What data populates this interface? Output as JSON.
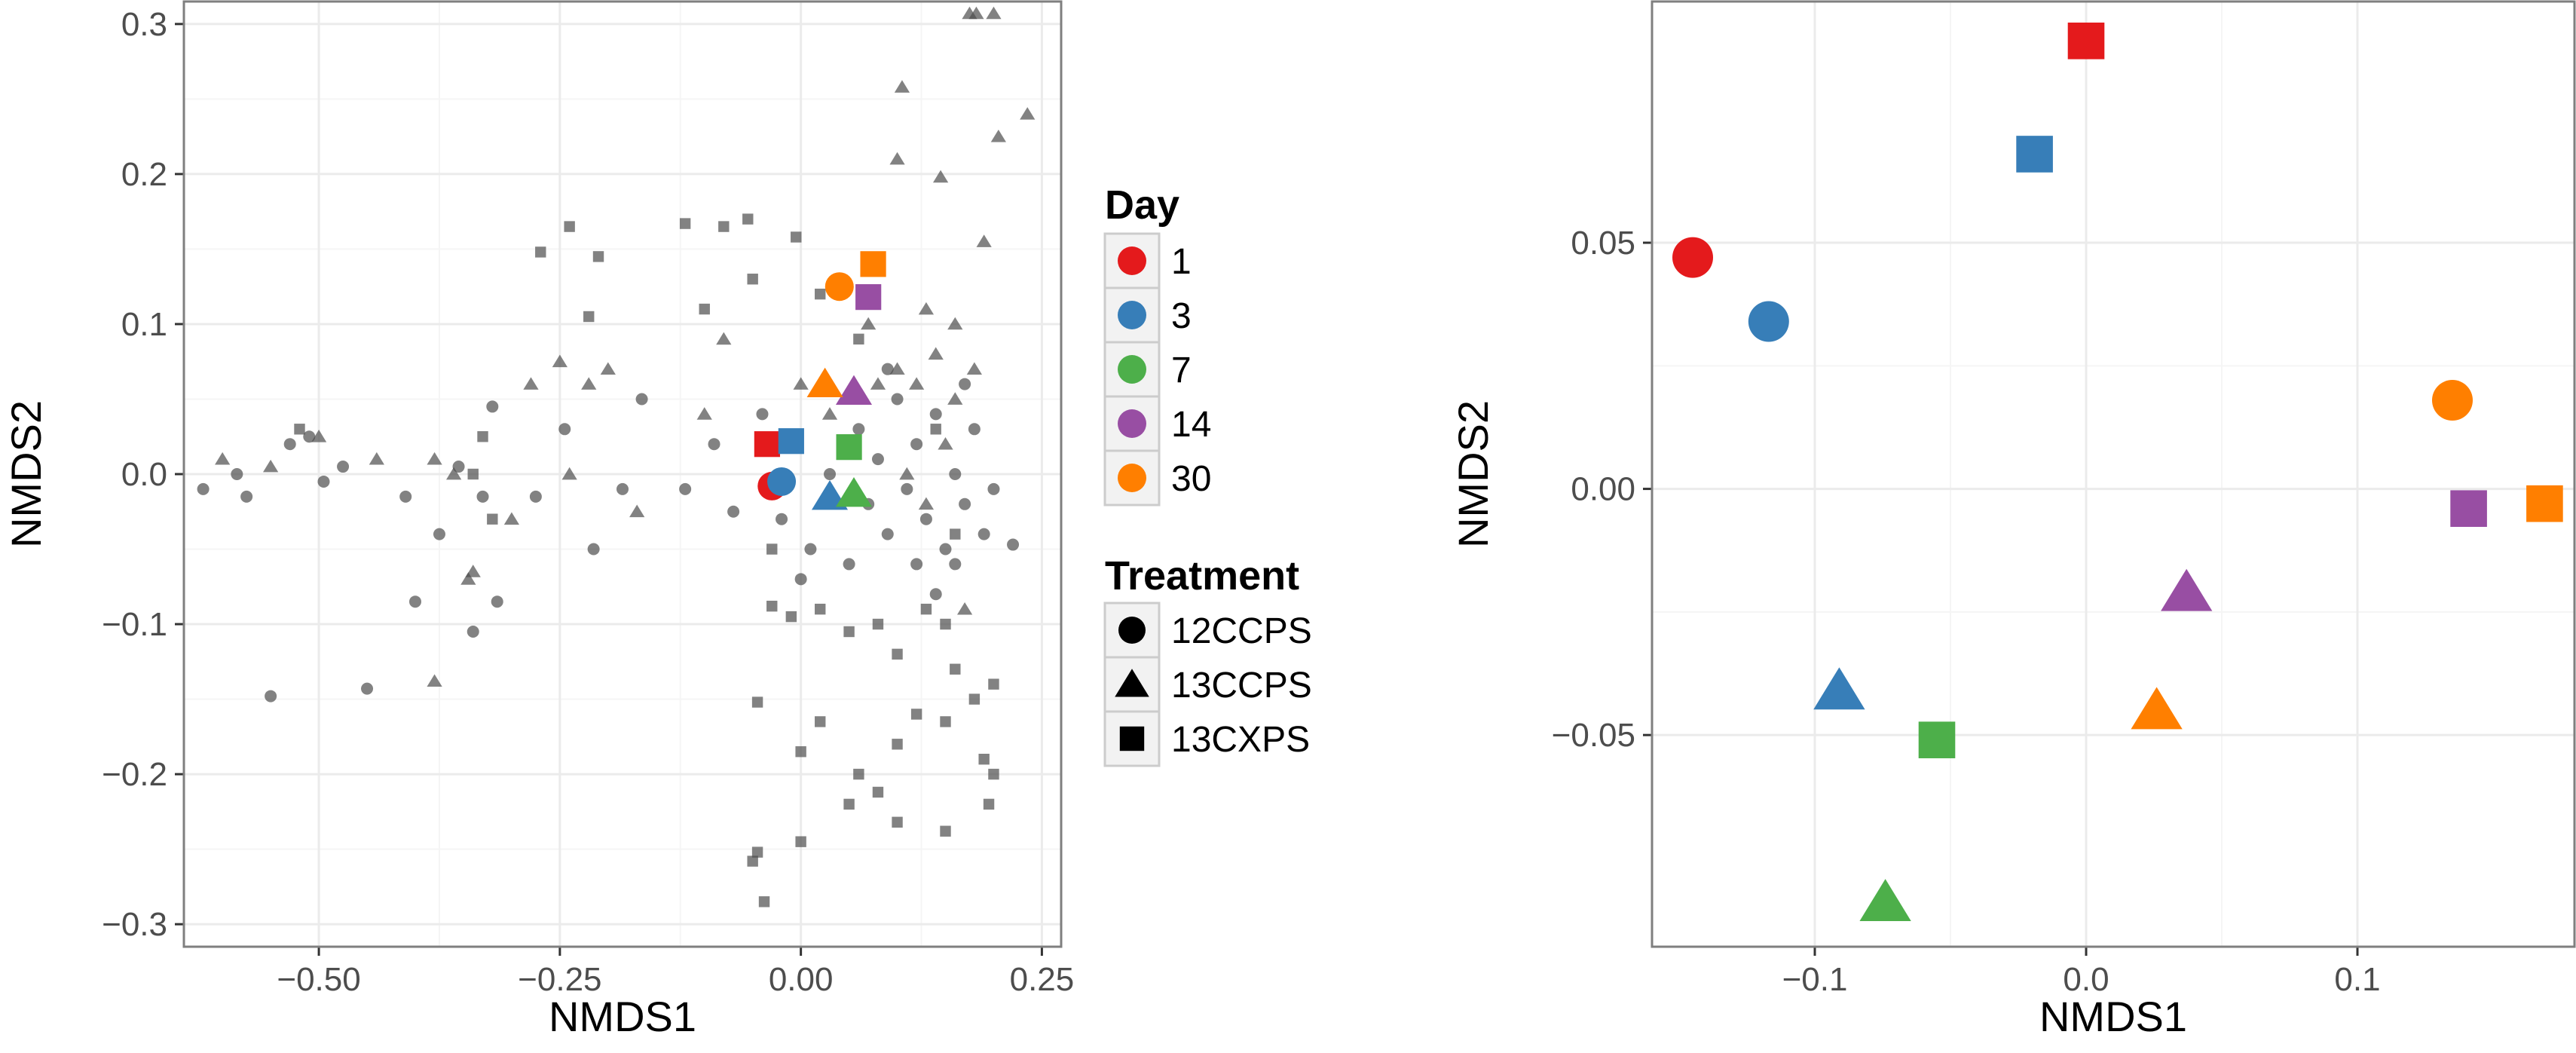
{
  "colors": {
    "day_1": "#e41a1c",
    "day_3": "#377eb8",
    "day_7": "#4daf4a",
    "day_14": "#984ea3",
    "day_30": "#ff7f00",
    "background_points": "#4d4d4d",
    "panel_border": "#7f7f7f",
    "grid": "#ebebeb"
  },
  "chart_data": [
    {
      "type": "scatter",
      "xlabel": "NMDS1",
      "ylabel": "NMDS2",
      "xlim": [
        -0.64,
        0.27
      ],
      "ylim": [
        -0.315,
        0.315
      ],
      "x_ticks": [
        -0.5,
        -0.25,
        0.0,
        0.25
      ],
      "x_tick_labels": [
        "−0.50",
        "−0.25",
        "0.00",
        "0.25"
      ],
      "y_ticks": [
        -0.3,
        -0.2,
        -0.1,
        0.0,
        0.1,
        0.2,
        0.3
      ],
      "y_tick_labels": [
        "−0.3",
        "−0.2",
        "−0.1",
        "0.0",
        "0.1",
        "0.2",
        "0.3"
      ],
      "grid": true,
      "background_points": [
        {
          "x": -0.62,
          "y": -0.01,
          "shape": "circle"
        },
        {
          "x": -0.585,
          "y": 0.0,
          "shape": "circle"
        },
        {
          "x": -0.575,
          "y": -0.015,
          "shape": "circle"
        },
        {
          "x": -0.53,
          "y": 0.02,
          "shape": "circle"
        },
        {
          "x": -0.51,
          "y": 0.025,
          "shape": "circle"
        },
        {
          "x": -0.495,
          "y": -0.005,
          "shape": "circle"
        },
        {
          "x": -0.475,
          "y": 0.005,
          "shape": "circle"
        },
        {
          "x": -0.41,
          "y": -0.015,
          "shape": "circle"
        },
        {
          "x": -0.375,
          "y": -0.04,
          "shape": "circle"
        },
        {
          "x": -0.355,
          "y": 0.005,
          "shape": "circle"
        },
        {
          "x": -0.32,
          "y": 0.045,
          "shape": "circle"
        },
        {
          "x": -0.315,
          "y": -0.085,
          "shape": "circle"
        },
        {
          "x": -0.33,
          "y": -0.015,
          "shape": "circle"
        },
        {
          "x": -0.275,
          "y": -0.015,
          "shape": "circle"
        },
        {
          "x": -0.245,
          "y": 0.03,
          "shape": "circle"
        },
        {
          "x": -0.215,
          "y": -0.05,
          "shape": "circle"
        },
        {
          "x": -0.185,
          "y": -0.01,
          "shape": "circle"
        },
        {
          "x": -0.165,
          "y": 0.05,
          "shape": "circle"
        },
        {
          "x": -0.12,
          "y": -0.01,
          "shape": "circle"
        },
        {
          "x": -0.09,
          "y": 0.02,
          "shape": "circle"
        },
        {
          "x": -0.07,
          "y": -0.025,
          "shape": "circle"
        },
        {
          "x": -0.04,
          "y": 0.04,
          "shape": "circle"
        },
        {
          "x": -0.02,
          "y": -0.03,
          "shape": "circle"
        },
        {
          "x": 0.0,
          "y": -0.07,
          "shape": "circle"
        },
        {
          "x": 0.01,
          "y": -0.05,
          "shape": "circle"
        },
        {
          "x": 0.03,
          "y": 0.0,
          "shape": "circle"
        },
        {
          "x": 0.05,
          "y": -0.06,
          "shape": "circle"
        },
        {
          "x": 0.06,
          "y": 0.03,
          "shape": "circle"
        },
        {
          "x": 0.07,
          "y": -0.02,
          "shape": "circle"
        },
        {
          "x": 0.08,
          "y": 0.01,
          "shape": "circle"
        },
        {
          "x": 0.09,
          "y": -0.04,
          "shape": "circle"
        },
        {
          "x": 0.1,
          "y": 0.05,
          "shape": "circle"
        },
        {
          "x": 0.11,
          "y": -0.01,
          "shape": "circle"
        },
        {
          "x": 0.12,
          "y": 0.02,
          "shape": "circle"
        },
        {
          "x": 0.13,
          "y": -0.03,
          "shape": "circle"
        },
        {
          "x": 0.14,
          "y": 0.04,
          "shape": "circle"
        },
        {
          "x": 0.15,
          "y": -0.05,
          "shape": "circle"
        },
        {
          "x": 0.16,
          "y": 0.0,
          "shape": "circle"
        },
        {
          "x": 0.17,
          "y": -0.02,
          "shape": "circle"
        },
        {
          "x": 0.18,
          "y": 0.03,
          "shape": "circle"
        },
        {
          "x": 0.19,
          "y": -0.04,
          "shape": "circle"
        },
        {
          "x": 0.2,
          "y": -0.01,
          "shape": "circle"
        },
        {
          "x": 0.22,
          "y": -0.047,
          "shape": "circle"
        },
        {
          "x": 0.12,
          "y": -0.06,
          "shape": "circle"
        },
        {
          "x": 0.14,
          "y": -0.08,
          "shape": "circle"
        },
        {
          "x": 0.16,
          "y": -0.06,
          "shape": "circle"
        },
        {
          "x": 0.09,
          "y": 0.07,
          "shape": "circle"
        },
        {
          "x": 0.17,
          "y": 0.06,
          "shape": "circle"
        },
        {
          "x": -0.55,
          "y": -0.148,
          "shape": "circle"
        },
        {
          "x": -0.45,
          "y": -0.143,
          "shape": "circle"
        },
        {
          "x": -0.4,
          "y": -0.085,
          "shape": "circle"
        },
        {
          "x": -0.34,
          "y": -0.105,
          "shape": "circle"
        },
        {
          "x": -0.6,
          "y": 0.01,
          "shape": "triangle"
        },
        {
          "x": -0.55,
          "y": 0.005,
          "shape": "triangle"
        },
        {
          "x": -0.5,
          "y": 0.025,
          "shape": "triangle"
        },
        {
          "x": -0.44,
          "y": 0.01,
          "shape": "triangle"
        },
        {
          "x": -0.38,
          "y": 0.01,
          "shape": "triangle"
        },
        {
          "x": -0.36,
          "y": 0.0,
          "shape": "triangle"
        },
        {
          "x": -0.345,
          "y": -0.07,
          "shape": "triangle"
        },
        {
          "x": -0.34,
          "y": -0.065,
          "shape": "triangle"
        },
        {
          "x": -0.38,
          "y": -0.138,
          "shape": "triangle"
        },
        {
          "x": -0.28,
          "y": 0.06,
          "shape": "triangle"
        },
        {
          "x": -0.25,
          "y": 0.075,
          "shape": "triangle"
        },
        {
          "x": -0.22,
          "y": 0.06,
          "shape": "triangle"
        },
        {
          "x": -0.2,
          "y": 0.07,
          "shape": "triangle"
        },
        {
          "x": -0.3,
          "y": -0.03,
          "shape": "triangle"
        },
        {
          "x": -0.24,
          "y": 0.0,
          "shape": "triangle"
        },
        {
          "x": -0.17,
          "y": -0.025,
          "shape": "triangle"
        },
        {
          "x": -0.1,
          "y": 0.04,
          "shape": "triangle"
        },
        {
          "x": -0.08,
          "y": 0.09,
          "shape": "triangle"
        },
        {
          "x": 0.0,
          "y": 0.06,
          "shape": "triangle"
        },
        {
          "x": 0.03,
          "y": 0.04,
          "shape": "triangle"
        },
        {
          "x": 0.06,
          "y": 0.05,
          "shape": "triangle"
        },
        {
          "x": 0.08,
          "y": 0.06,
          "shape": "triangle"
        },
        {
          "x": 0.1,
          "y": 0.07,
          "shape": "triangle"
        },
        {
          "x": 0.12,
          "y": 0.06,
          "shape": "triangle"
        },
        {
          "x": 0.14,
          "y": 0.08,
          "shape": "triangle"
        },
        {
          "x": 0.16,
          "y": 0.05,
          "shape": "triangle"
        },
        {
          "x": 0.18,
          "y": 0.07,
          "shape": "triangle"
        },
        {
          "x": 0.11,
          "y": 0.0,
          "shape": "triangle"
        },
        {
          "x": 0.13,
          "y": -0.02,
          "shape": "triangle"
        },
        {
          "x": 0.15,
          "y": 0.02,
          "shape": "triangle"
        },
        {
          "x": 0.07,
          "y": 0.1,
          "shape": "triangle"
        },
        {
          "x": 0.13,
          "y": 0.11,
          "shape": "triangle"
        },
        {
          "x": 0.16,
          "y": 0.1,
          "shape": "triangle"
        },
        {
          "x": 0.19,
          "y": 0.155,
          "shape": "triangle"
        },
        {
          "x": 0.1,
          "y": 0.21,
          "shape": "triangle"
        },
        {
          "x": 0.145,
          "y": 0.198,
          "shape": "triangle"
        },
        {
          "x": 0.105,
          "y": 0.258,
          "shape": "triangle"
        },
        {
          "x": 0.205,
          "y": 0.225,
          "shape": "triangle"
        },
        {
          "x": 0.235,
          "y": 0.24,
          "shape": "triangle"
        },
        {
          "x": 0.175,
          "y": 0.307,
          "shape": "triangle"
        },
        {
          "x": 0.182,
          "y": 0.307,
          "shape": "triangle"
        },
        {
          "x": 0.2,
          "y": 0.307,
          "shape": "triangle"
        },
        {
          "x": 0.17,
          "y": -0.09,
          "shape": "triangle"
        },
        {
          "x": -0.24,
          "y": 0.165,
          "shape": "square"
        },
        {
          "x": -0.27,
          "y": 0.148,
          "shape": "square"
        },
        {
          "x": -0.21,
          "y": 0.145,
          "shape": "square"
        },
        {
          "x": -0.12,
          "y": 0.167,
          "shape": "square"
        },
        {
          "x": -0.08,
          "y": 0.165,
          "shape": "square"
        },
        {
          "x": -0.055,
          "y": 0.17,
          "shape": "square"
        },
        {
          "x": -0.005,
          "y": 0.158,
          "shape": "square"
        },
        {
          "x": -0.05,
          "y": 0.13,
          "shape": "square"
        },
        {
          "x": -0.1,
          "y": 0.11,
          "shape": "square"
        },
        {
          "x": -0.22,
          "y": 0.105,
          "shape": "square"
        },
        {
          "x": -0.52,
          "y": 0.03,
          "shape": "square"
        },
        {
          "x": -0.33,
          "y": 0.025,
          "shape": "square"
        },
        {
          "x": -0.34,
          "y": 0.0,
          "shape": "square"
        },
        {
          "x": -0.32,
          "y": -0.03,
          "shape": "square"
        },
        {
          "x": -0.03,
          "y": -0.05,
          "shape": "square"
        },
        {
          "x": 0.02,
          "y": -0.09,
          "shape": "square"
        },
        {
          "x": -0.03,
          "y": -0.088,
          "shape": "square"
        },
        {
          "x": -0.01,
          "y": -0.095,
          "shape": "square"
        },
        {
          "x": 0.05,
          "y": -0.105,
          "shape": "square"
        },
        {
          "x": 0.08,
          "y": -0.1,
          "shape": "square"
        },
        {
          "x": 0.1,
          "y": -0.12,
          "shape": "square"
        },
        {
          "x": 0.13,
          "y": -0.09,
          "shape": "square"
        },
        {
          "x": 0.15,
          "y": -0.1,
          "shape": "square"
        },
        {
          "x": 0.16,
          "y": -0.13,
          "shape": "square"
        },
        {
          "x": 0.18,
          "y": -0.15,
          "shape": "square"
        },
        {
          "x": 0.2,
          "y": -0.14,
          "shape": "square"
        },
        {
          "x": -0.045,
          "y": -0.152,
          "shape": "square"
        },
        {
          "x": 0.0,
          "y": -0.185,
          "shape": "square"
        },
        {
          "x": 0.02,
          "y": -0.165,
          "shape": "square"
        },
        {
          "x": 0.06,
          "y": -0.2,
          "shape": "square"
        },
        {
          "x": 0.1,
          "y": -0.18,
          "shape": "square"
        },
        {
          "x": 0.12,
          "y": -0.16,
          "shape": "square"
        },
        {
          "x": 0.15,
          "y": -0.165,
          "shape": "square"
        },
        {
          "x": 0.19,
          "y": -0.19,
          "shape": "square"
        },
        {
          "x": 0.2,
          "y": -0.2,
          "shape": "square"
        },
        {
          "x": 0.05,
          "y": -0.22,
          "shape": "square"
        },
        {
          "x": 0.1,
          "y": -0.232,
          "shape": "square"
        },
        {
          "x": 0.15,
          "y": -0.238,
          "shape": "square"
        },
        {
          "x": 0.0,
          "y": -0.245,
          "shape": "square"
        },
        {
          "x": 0.08,
          "y": -0.212,
          "shape": "square"
        },
        {
          "x": 0.195,
          "y": -0.22,
          "shape": "square"
        },
        {
          "x": -0.05,
          "y": -0.258,
          "shape": "square"
        },
        {
          "x": -0.045,
          "y": -0.252,
          "shape": "square"
        },
        {
          "x": -0.038,
          "y": -0.285,
          "shape": "square"
        },
        {
          "x": 0.02,
          "y": 0.12,
          "shape": "square"
        },
        {
          "x": 0.06,
          "y": 0.09,
          "shape": "square"
        },
        {
          "x": 0.14,
          "y": 0.03,
          "shape": "square"
        },
        {
          "x": 0.16,
          "y": -0.04,
          "shape": "square"
        }
      ],
      "highlighted_points": [
        {
          "day": "1",
          "treatment": "12CCPS",
          "x": -0.03,
          "y": -0.008
        },
        {
          "day": "1",
          "treatment": "13CXPS",
          "x": -0.035,
          "y": 0.02
        },
        {
          "day": "3",
          "treatment": "12CCPS",
          "x": -0.02,
          "y": -0.005
        },
        {
          "day": "3",
          "treatment": "13CCPS",
          "x": 0.03,
          "y": -0.015
        },
        {
          "day": "3",
          "treatment": "13CXPS",
          "x": -0.01,
          "y": 0.022
        },
        {
          "day": "7",
          "treatment": "13CCPS",
          "x": 0.055,
          "y": -0.013
        },
        {
          "day": "7",
          "treatment": "13CXPS",
          "x": 0.05,
          "y": 0.018
        },
        {
          "day": "14",
          "treatment": "13CCPS",
          "x": 0.055,
          "y": 0.055
        },
        {
          "day": "14",
          "treatment": "13CXPS",
          "x": 0.07,
          "y": 0.118
        },
        {
          "day": "30",
          "treatment": "12CCPS",
          "x": 0.04,
          "y": 0.125
        },
        {
          "day": "30",
          "treatment": "13CCPS",
          "x": 0.025,
          "y": 0.06
        },
        {
          "day": "30",
          "treatment": "13CXPS",
          "x": 0.075,
          "y": 0.14
        }
      ]
    },
    {
      "type": "scatter",
      "xlabel": "NMDS1",
      "ylabel": "NMDS2",
      "xlim": [
        -0.16,
        0.18
      ],
      "ylim": [
        -0.093,
        0.099
      ],
      "x_ticks": [
        -0.1,
        0.0,
        0.1
      ],
      "x_tick_labels": [
        "−0.1",
        "0.0",
        "0.1"
      ],
      "y_ticks": [
        -0.05,
        0.0,
        0.05
      ],
      "y_tick_labels": [
        "−0.05",
        "0.00",
        "0.05"
      ],
      "grid": true,
      "points": [
        {
          "day": "1",
          "treatment": "12CCPS",
          "x": -0.145,
          "y": 0.047
        },
        {
          "day": "1",
          "treatment": "13CXPS",
          "x": 0.0,
          "y": 0.091
        },
        {
          "day": "3",
          "treatment": "12CCPS",
          "x": -0.117,
          "y": 0.034
        },
        {
          "day": "3",
          "treatment": "13CCPS",
          "x": -0.091,
          "y": -0.041
        },
        {
          "day": "3",
          "treatment": "13CXPS",
          "x": -0.019,
          "y": 0.068
        },
        {
          "day": "7",
          "treatment": "13CCPS",
          "x": -0.074,
          "y": -0.084
        },
        {
          "day": "7",
          "treatment": "13CXPS",
          "x": -0.055,
          "y": -0.051
        },
        {
          "day": "14",
          "treatment": "13CCPS",
          "x": 0.037,
          "y": -0.021
        },
        {
          "day": "14",
          "treatment": "13CXPS",
          "x": 0.141,
          "y": -0.004
        },
        {
          "day": "30",
          "treatment": "12CCPS",
          "x": 0.135,
          "y": 0.018
        },
        {
          "day": "30",
          "treatment": "13CCPS",
          "x": 0.026,
          "y": -0.045
        },
        {
          "day": "30",
          "treatment": "13CXPS",
          "x": 0.169,
          "y": -0.003
        }
      ]
    }
  ],
  "legend": {
    "day_title": "Day",
    "days": [
      {
        "key": "1",
        "label": "1",
        "color": "#e41a1c"
      },
      {
        "key": "3",
        "label": "3",
        "color": "#377eb8"
      },
      {
        "key": "7",
        "label": "7",
        "color": "#4daf4a"
      },
      {
        "key": "14",
        "label": "14",
        "color": "#984ea3"
      },
      {
        "key": "30",
        "label": "30",
        "color": "#ff7f00"
      }
    ],
    "treatment_title": "Treatment",
    "treatments": [
      {
        "key": "12CCPS",
        "label": "12CCPS",
        "shape": "circle"
      },
      {
        "key": "13CCPS",
        "label": "13CCPS",
        "shape": "triangle"
      },
      {
        "key": "13CXPS",
        "label": "13CXPS",
        "shape": "square"
      }
    ]
  }
}
